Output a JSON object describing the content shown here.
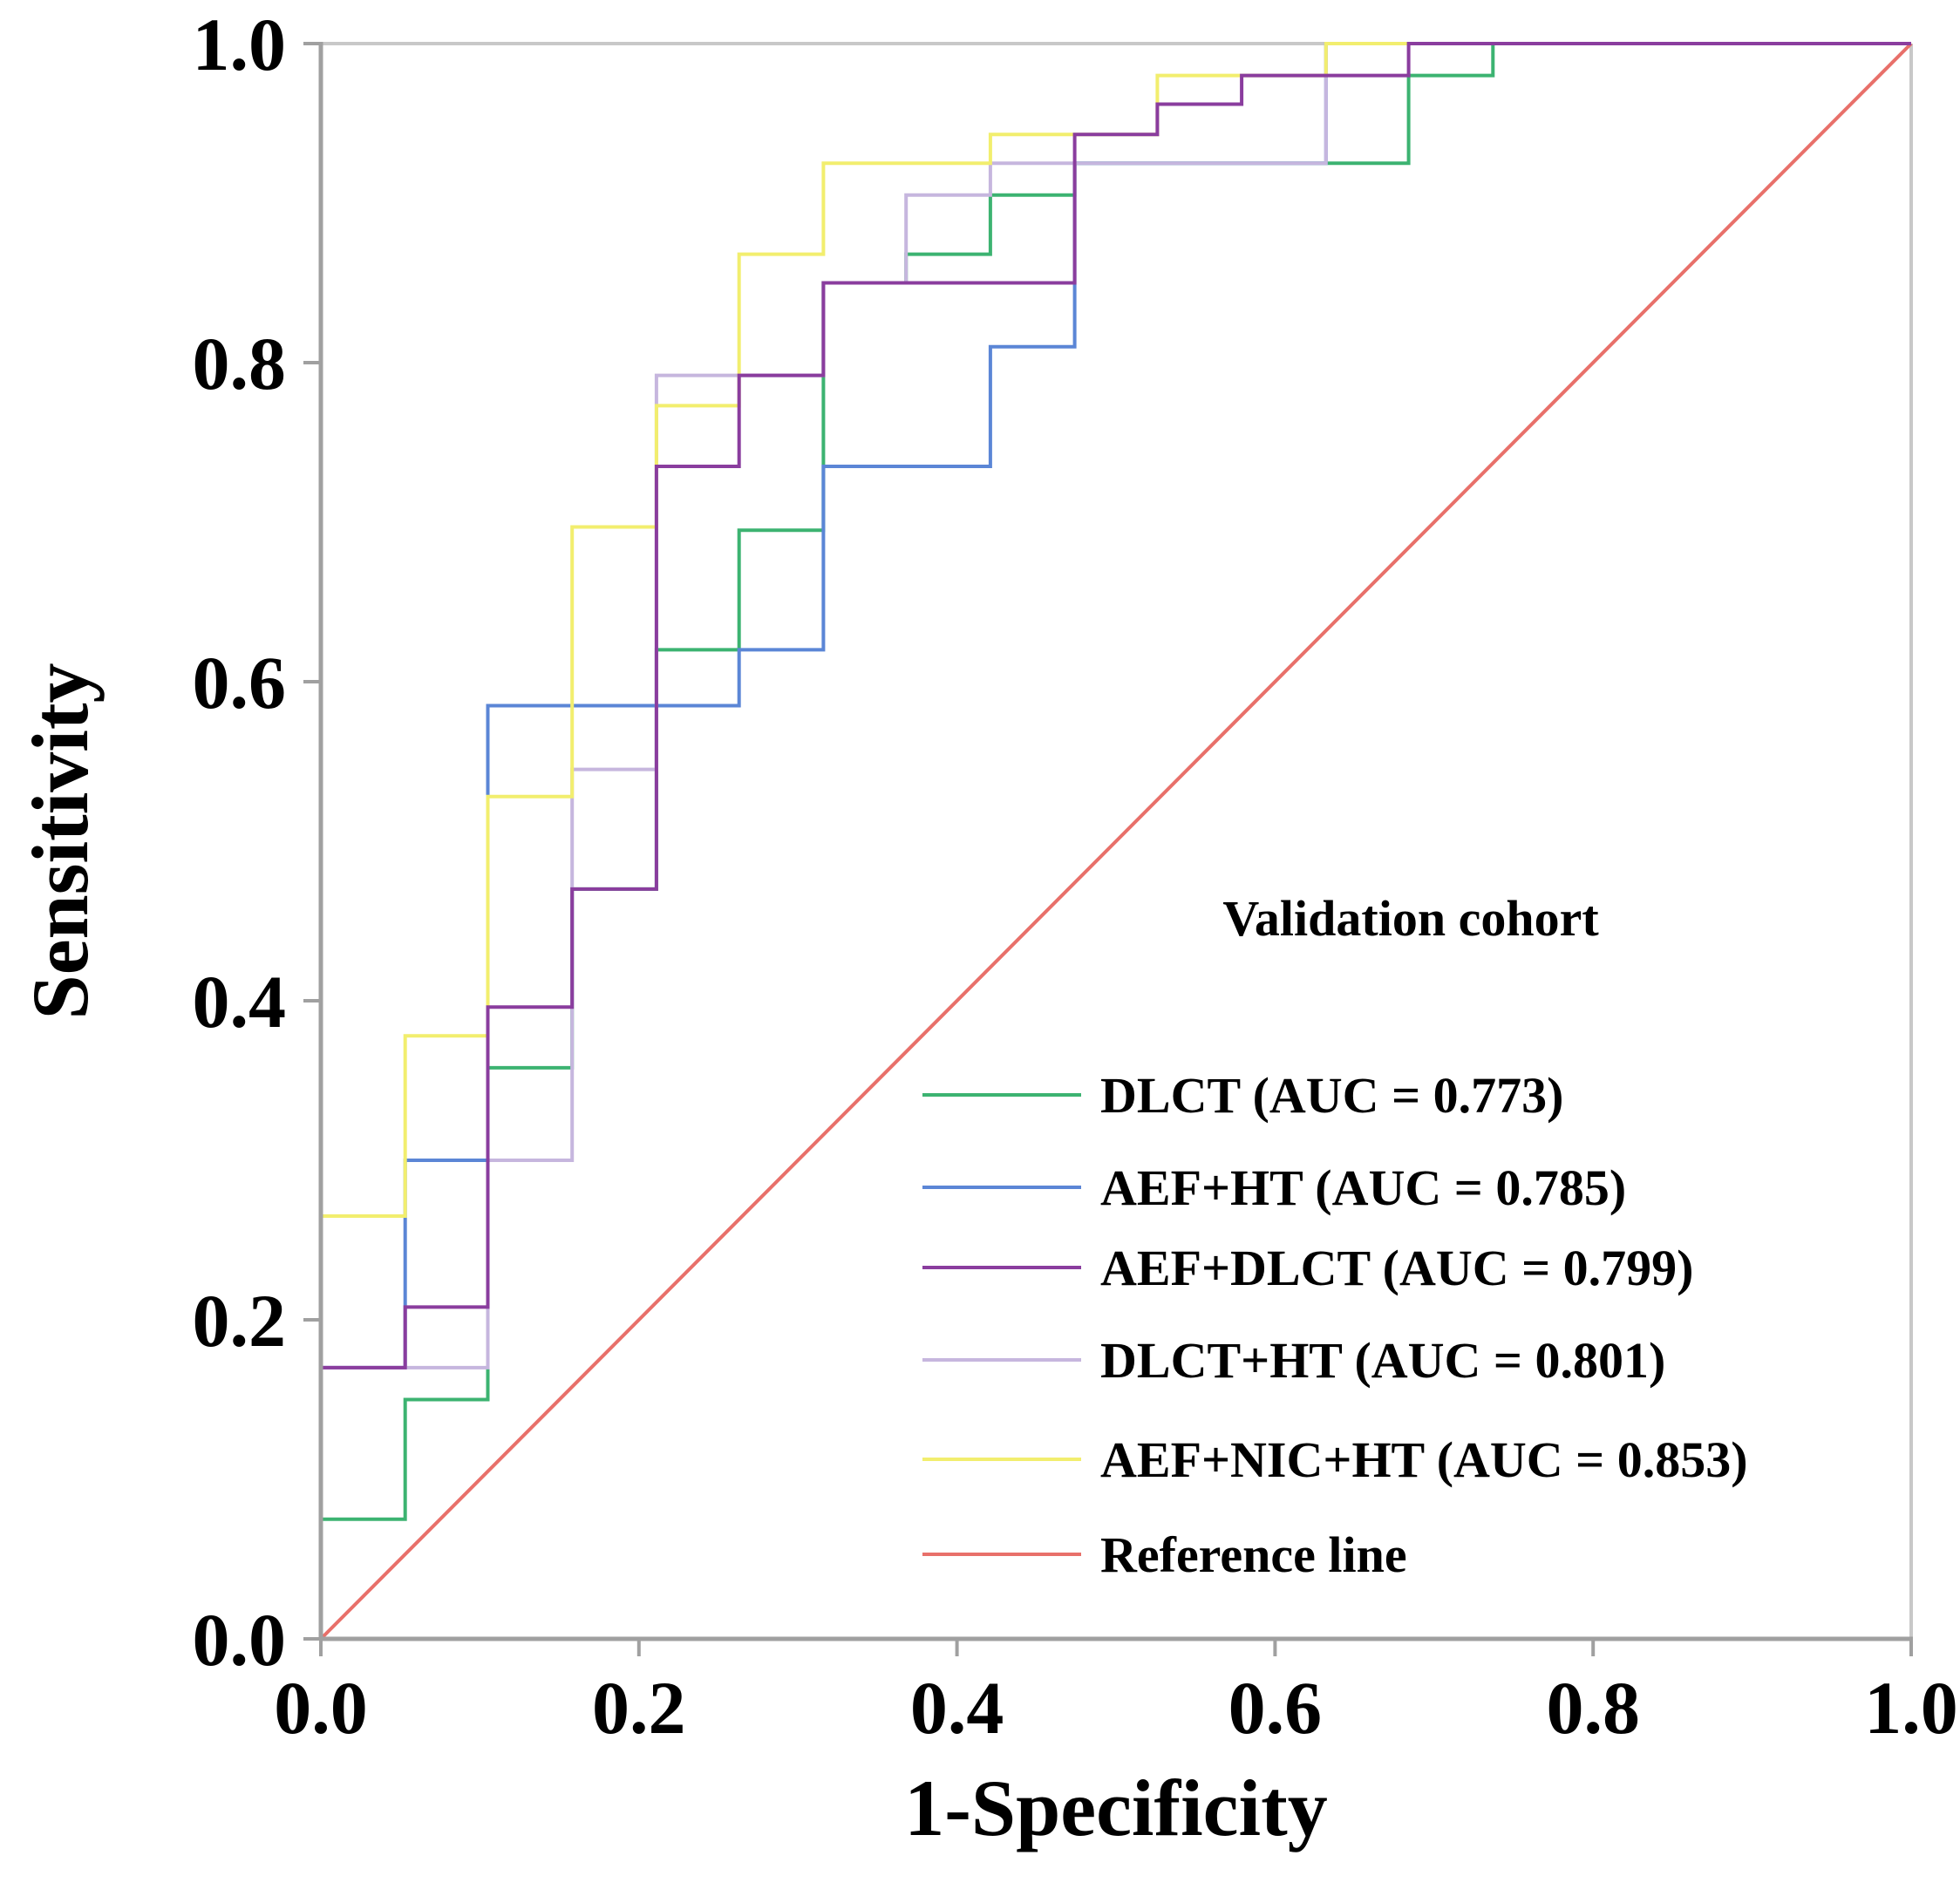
{
  "chart_data": {
    "type": "line",
    "title": "",
    "xlabel": "1-Specificity",
    "ylabel": "Sensitivity",
    "xlim": [
      0,
      1
    ],
    "ylim": [
      0,
      1
    ],
    "x_ticks": [
      "0.0",
      "0.2",
      "0.4",
      "0.6",
      "0.8",
      "1.0"
    ],
    "y_ticks": [
      "0.0",
      "0.2",
      "0.4",
      "0.6",
      "0.8",
      "1.0"
    ],
    "grid": false,
    "legend_placement": "bottom-right",
    "legend_title": "Validation cohort",
    "series": [
      {
        "name": "DLCT (AUC = 0.773)",
        "color": "#3cb371",
        "x": [
          0,
          0.053,
          0.053,
          0.105,
          0.105,
          0.158,
          0.158,
          0.211,
          0.211,
          0.263,
          0.263,
          0.316,
          0.316,
          0.368,
          0.368,
          0.421,
          0.421,
          0.474,
          0.474,
          0.684,
          0.684,
          0.737,
          0.737,
          1.0
        ],
        "y": [
          0.075,
          0.075,
          0.15,
          0.15,
          0.358,
          0.358,
          0.47,
          0.47,
          0.62,
          0.62,
          0.695,
          0.695,
          0.85,
          0.85,
          0.868,
          0.868,
          0.905,
          0.905,
          0.925,
          0.925,
          0.98,
          0.98,
          1.0,
          1.0
        ]
      },
      {
        "name": "AEF+HT (AUC = 0.785)",
        "color": "#5b86d6",
        "x": [
          0,
          0.053,
          0.053,
          0.105,
          0.105,
          0.263,
          0.263,
          0.316,
          0.316,
          0.421,
          0.421,
          0.474,
          0.474,
          0.632,
          0.632,
          1.0
        ],
        "y": [
          0.17,
          0.17,
          0.3,
          0.3,
          0.585,
          0.585,
          0.62,
          0.62,
          0.735,
          0.735,
          0.81,
          0.81,
          0.925,
          0.925,
          1.0,
          1.0
        ]
      },
      {
        "name": "AEF+DLCT (AUC = 0.799)",
        "color": "#8a3d9e",
        "x": [
          0,
          0.053,
          0.053,
          0.105,
          0.105,
          0.158,
          0.158,
          0.211,
          0.211,
          0.263,
          0.263,
          0.316,
          0.316,
          0.474,
          0.474,
          0.526,
          0.526,
          0.579,
          0.579,
          0.684,
          0.684,
          1.0
        ],
        "y": [
          0.17,
          0.17,
          0.208,
          0.208,
          0.396,
          0.396,
          0.47,
          0.47,
          0.735,
          0.735,
          0.792,
          0.792,
          0.85,
          0.85,
          0.943,
          0.943,
          0.962,
          0.962,
          0.98,
          0.98,
          1.0,
          1.0
        ]
      },
      {
        "name": "DLCT+HT (AUC = 0.801)",
        "color": "#c6b6de",
        "x": [
          0,
          0.105,
          0.105,
          0.158,
          0.158,
          0.211,
          0.211,
          0.263,
          0.263,
          0.316,
          0.316,
          0.368,
          0.368,
          0.421,
          0.421,
          0.474,
          0.474,
          0.632,
          0.632,
          1.0
        ],
        "y": [
          0.17,
          0.17,
          0.3,
          0.3,
          0.545,
          0.545,
          0.792,
          0.792,
          0.792,
          0.792,
          0.85,
          0.85,
          0.905,
          0.905,
          0.925,
          0.925,
          0.925,
          0.925,
          1.0,
          1.0
        ]
      },
      {
        "name": "AEF+NIC+HT (AUC = 0.853)",
        "color": "#f2ee6e",
        "x": [
          0,
          0.053,
          0.053,
          0.105,
          0.105,
          0.158,
          0.158,
          0.211,
          0.211,
          0.263,
          0.263,
          0.316,
          0.316,
          0.421,
          0.421,
          0.526,
          0.526,
          0.632,
          0.632,
          1.0
        ],
        "y": [
          0.265,
          0.265,
          0.378,
          0.378,
          0.528,
          0.528,
          0.697,
          0.697,
          0.773,
          0.773,
          0.868,
          0.868,
          0.925,
          0.925,
          0.943,
          0.943,
          0.98,
          0.98,
          1.0,
          1.0
        ]
      },
      {
        "name": "Reference line",
        "color": "#e8706a",
        "x": [
          0,
          1.0
        ],
        "y": [
          0,
          1.0
        ]
      }
    ]
  }
}
